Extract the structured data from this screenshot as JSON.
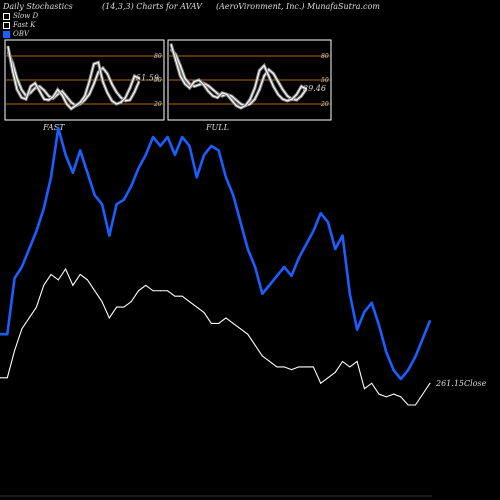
{
  "header": {
    "left": "Daily Stochastics",
    "center": "(14,3,3) Charts for AVAV",
    "right": "(AeroVironment, Inc.) MunafaSutra.com"
  },
  "legend": [
    {
      "label": "Slow  D",
      "color": "#ffffff"
    },
    {
      "label": "Fast K",
      "color": "#ffffff"
    },
    {
      "label": "OBV",
      "color": "#1a5fff"
    }
  ],
  "colors": {
    "obv": "#1a5fff",
    "price": "#ffffff",
    "band": "#b06a10"
  },
  "chart_data": [
    {
      "type": "line",
      "name": "slow-stochastic",
      "ticks": [
        "80",
        "50",
        "20"
      ],
      "value_label": "51.59",
      "bottom_label": "FAST",
      "series": [
        {
          "name": "Slow  D",
          "values": [
            85,
            72,
            52,
            38,
            30,
            34,
            40,
            42,
            37,
            30,
            27,
            32,
            36,
            29,
            22,
            18,
            20,
            25,
            32,
            45,
            60,
            65,
            58,
            45,
            35,
            28,
            24,
            25,
            35,
            48
          ]
        },
        {
          "name": "Fast K",
          "values": [
            92,
            62,
            38,
            28,
            26,
            42,
            46,
            36,
            26,
            25,
            29,
            38,
            31,
            20,
            14,
            18,
            22,
            30,
            48,
            70,
            72,
            48,
            34,
            24,
            20,
            22,
            28,
            40,
            55,
            52
          ]
        }
      ]
    },
    {
      "type": "line",
      "name": "fast-stochastic",
      "ticks": [
        "80",
        "50",
        "20"
      ],
      "value_label": "39.46",
      "bottom_label": "FULL",
      "series": [
        {
          "name": "Slow  D",
          "values": [
            88,
            82,
            68,
            52,
            45,
            42,
            44,
            46,
            43,
            38,
            33,
            30,
            32,
            30,
            25,
            20,
            18,
            20,
            26,
            38,
            55,
            63,
            58,
            48,
            38,
            30,
            26,
            25,
            30,
            38
          ]
        },
        {
          "name": "Fast K",
          "values": [
            95,
            75,
            55,
            45,
            40,
            48,
            50,
            44,
            36,
            30,
            28,
            34,
            32,
            25,
            18,
            15,
            18,
            26,
            40,
            62,
            68,
            55,
            42,
            32,
            26,
            24,
            26,
            32,
            42,
            39
          ]
        }
      ]
    },
    {
      "type": "line",
      "name": "obv-and-price",
      "price_label": "261.15Close",
      "series": [
        {
          "name": "OBV",
          "values": [
            0,
            0,
            25,
            30,
            38,
            46,
            56,
            70,
            92,
            80,
            72,
            82,
            72,
            62,
            58,
            44,
            58,
            60,
            66,
            74,
            80,
            88,
            84,
            88,
            80,
            88,
            84,
            70,
            80,
            84,
            82,
            70,
            62,
            50,
            38,
            30,
            18,
            22,
            26,
            30,
            26,
            34,
            40,
            46,
            54,
            50,
            38,
            44,
            18,
            2,
            10,
            14,
            4,
            -8,
            -16,
            -20,
            -16,
            -10,
            -2,
            6
          ]
        },
        {
          "name": "Price",
          "values": [
            250,
            250,
            260,
            268,
            272,
            276,
            284,
            288,
            286,
            290,
            284,
            288,
            286,
            282,
            278,
            272,
            276,
            276,
            278,
            282,
            284,
            282,
            282,
            282,
            280,
            280,
            278,
            276,
            274,
            270,
            270,
            272,
            270,
            268,
            266,
            262,
            258,
            256,
            254,
            254,
            253,
            254,
            254,
            254,
            248,
            250,
            252,
            256,
            254,
            256,
            246,
            248,
            244,
            243,
            244,
            243,
            240,
            240,
            244,
            248
          ]
        }
      ]
    }
  ]
}
